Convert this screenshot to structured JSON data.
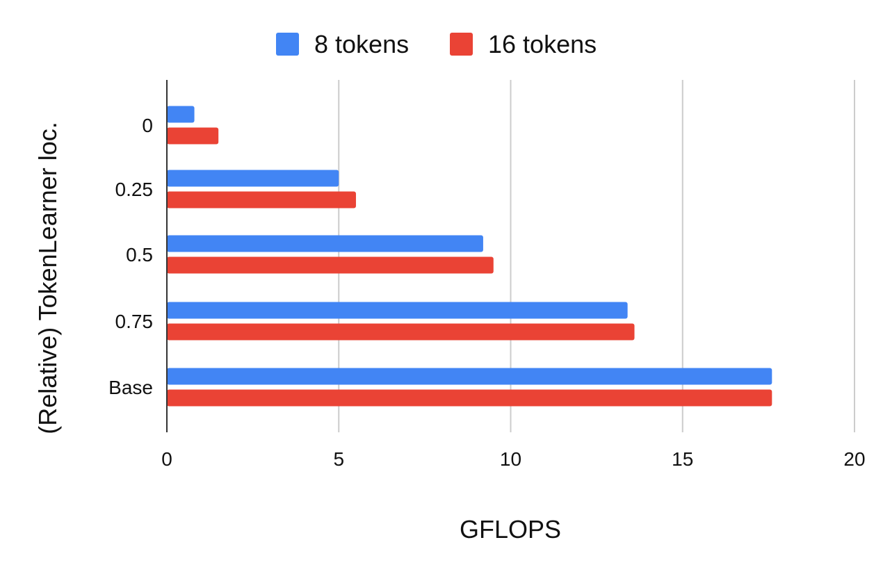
{
  "chart_data": {
    "type": "bar",
    "orientation": "horizontal",
    "categories": [
      "0",
      "0.25",
      "0.5",
      "0.75",
      "Base"
    ],
    "series": [
      {
        "name": "8 tokens",
        "color": "#4285F4",
        "values": [
          0.8,
          5.0,
          9.2,
          13.4,
          17.6
        ]
      },
      {
        "name": "16 tokens",
        "color": "#EA4335",
        "values": [
          1.5,
          5.5,
          9.5,
          13.6,
          17.6
        ]
      }
    ],
    "title": "",
    "xlabel": "GFLOPS",
    "ylabel": "(Relative) TokenLearner loc.",
    "xlim": [
      0,
      20
    ],
    "xticks": [
      "0",
      "5",
      "10",
      "15",
      "20"
    ],
    "grid": "vertical",
    "legend_position": "top"
  }
}
